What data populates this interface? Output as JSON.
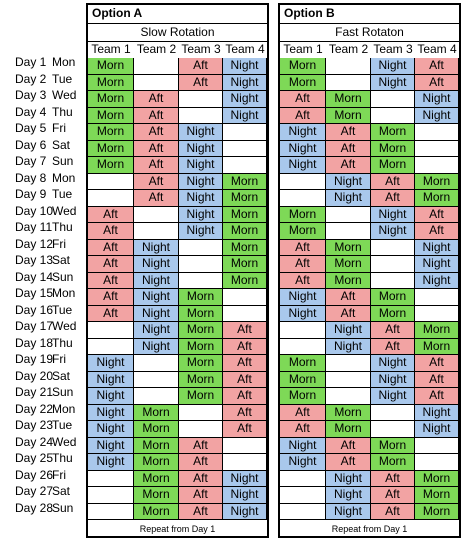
{
  "days": [
    {
      "num": "Day 1",
      "name": "Mon"
    },
    {
      "num": "Day 2",
      "name": "Tue"
    },
    {
      "num": "Day 3",
      "name": "Wed"
    },
    {
      "num": "Day 4",
      "name": "Thu"
    },
    {
      "num": "Day 5",
      "name": "Fri"
    },
    {
      "num": "Day 6",
      "name": "Sat"
    },
    {
      "num": "Day 7",
      "name": "Sun"
    },
    {
      "num": "Day 8",
      "name": "Mon"
    },
    {
      "num": "Day 9",
      "name": "Tue"
    },
    {
      "num": "Day 10",
      "name": "Wed"
    },
    {
      "num": "Day 11",
      "name": "Thu"
    },
    {
      "num": "Day 12",
      "name": "Fri"
    },
    {
      "num": "Day 13",
      "name": "Sat"
    },
    {
      "num": "Day 14",
      "name": "Sun"
    },
    {
      "num": "Day 15",
      "name": "Mon"
    },
    {
      "num": "Day 16",
      "name": "Tue"
    },
    {
      "num": "Day 17",
      "name": "Wed"
    },
    {
      "num": "Day 18",
      "name": "Thu"
    },
    {
      "num": "Day 19",
      "name": "Fri"
    },
    {
      "num": "Day 20",
      "name": "Sat"
    },
    {
      "num": "Day 21",
      "name": "Sun"
    },
    {
      "num": "Day 22",
      "name": "Mon"
    },
    {
      "num": "Day 23",
      "name": "Tue"
    },
    {
      "num": "Day 24",
      "name": "Wed"
    },
    {
      "num": "Day 25",
      "name": "Thu"
    },
    {
      "num": "Day 26",
      "name": "Fri"
    },
    {
      "num": "Day 27",
      "name": "Sat"
    },
    {
      "num": "Day 28",
      "name": "Sun"
    }
  ],
  "colors": {
    "Morn": "#7ed957",
    "Aft": "#f2a3a3",
    "Night": "#a9c8ec"
  },
  "options": [
    {
      "title": "Option A",
      "subtitle": "Slow Rotation",
      "teams": [
        "Team 1",
        "Team 2",
        "Team 3",
        "Team 4"
      ],
      "footer": "Repeat from Day 1",
      "rows": [
        [
          "Morn",
          "",
          "Aft",
          "Night"
        ],
        [
          "Morn",
          "",
          "Aft",
          "Night"
        ],
        [
          "Morn",
          "Aft",
          "",
          "Night"
        ],
        [
          "Morn",
          "Aft",
          "",
          "Night"
        ],
        [
          "Morn",
          "Aft",
          "Night",
          ""
        ],
        [
          "Morn",
          "Aft",
          "Night",
          ""
        ],
        [
          "Morn",
          "Aft",
          "Night",
          ""
        ],
        [
          "",
          "Aft",
          "Night",
          "Morn"
        ],
        [
          "",
          "Aft",
          "Night",
          "Morn"
        ],
        [
          "Aft",
          "",
          "Night",
          "Morn"
        ],
        [
          "Aft",
          "",
          "Night",
          "Morn"
        ],
        [
          "Aft",
          "Night",
          "",
          "Morn"
        ],
        [
          "Aft",
          "Night",
          "",
          "Morn"
        ],
        [
          "Aft",
          "Night",
          "",
          "Morn"
        ],
        [
          "Aft",
          "Night",
          "Morn",
          ""
        ],
        [
          "Aft",
          "Night",
          "Morn",
          ""
        ],
        [
          "",
          "Night",
          "Morn",
          "Aft"
        ],
        [
          "",
          "Night",
          "Morn",
          "Aft"
        ],
        [
          "Night",
          "",
          "Morn",
          "Aft"
        ],
        [
          "Night",
          "",
          "Morn",
          "Aft"
        ],
        [
          "Night",
          "",
          "Morn",
          "Aft"
        ],
        [
          "Night",
          "Morn",
          "",
          "Aft"
        ],
        [
          "Night",
          "Morn",
          "",
          "Aft"
        ],
        [
          "Night",
          "Morn",
          "Aft",
          ""
        ],
        [
          "Night",
          "Morn",
          "Aft",
          ""
        ],
        [
          "",
          "Morn",
          "Aft",
          "Night"
        ],
        [
          "",
          "Morn",
          "Aft",
          "Night"
        ],
        [
          "",
          "Morn",
          "Aft",
          "Night"
        ]
      ]
    },
    {
      "title": "Option B",
      "subtitle": "Fast Rotaton",
      "teams": [
        "Team 1",
        "Team 2",
        "Team 3",
        "Team 4"
      ],
      "footer": "Repeat from Day 1",
      "rows": [
        [
          "Morn",
          "",
          "Night",
          "Aft"
        ],
        [
          "Morn",
          "",
          "Night",
          "Aft"
        ],
        [
          "Aft",
          "Morn",
          "",
          "Night"
        ],
        [
          "Aft",
          "Morn",
          "",
          "Night"
        ],
        [
          "Night",
          "Aft",
          "Morn",
          ""
        ],
        [
          "Night",
          "Aft",
          "Morn",
          ""
        ],
        [
          "Night",
          "Aft",
          "Morn",
          ""
        ],
        [
          "",
          "Night",
          "Aft",
          "Morn"
        ],
        [
          "",
          "Night",
          "Aft",
          "Morn"
        ],
        [
          "Morn",
          "",
          "Night",
          "Aft"
        ],
        [
          "Morn",
          "",
          "Night",
          "Aft"
        ],
        [
          "Aft",
          "Morn",
          "",
          "Night"
        ],
        [
          "Aft",
          "Morn",
          "",
          "Night"
        ],
        [
          "Aft",
          "Morn",
          "",
          "Night"
        ],
        [
          "Night",
          "Aft",
          "Morn",
          ""
        ],
        [
          "Night",
          "Aft",
          "Morn",
          ""
        ],
        [
          "",
          "Night",
          "Aft",
          "Morn"
        ],
        [
          "",
          "Night",
          "Aft",
          "Morn"
        ],
        [
          "Morn",
          "",
          "Night",
          "Aft"
        ],
        [
          "Morn",
          "",
          "Night",
          "Aft"
        ],
        [
          "Morn",
          "",
          "Night",
          "Aft"
        ],
        [
          "Aft",
          "Morn",
          "",
          "Night"
        ],
        [
          "Aft",
          "Morn",
          "",
          "Night"
        ],
        [
          "Night",
          "Aft",
          "Morn",
          ""
        ],
        [
          "Night",
          "Aft",
          "Morn",
          ""
        ],
        [
          "",
          "Night",
          "Aft",
          "Morn"
        ],
        [
          "",
          "Night",
          "Aft",
          "Morn"
        ],
        [
          "",
          "Night",
          "Aft",
          "Morn"
        ]
      ]
    }
  ]
}
